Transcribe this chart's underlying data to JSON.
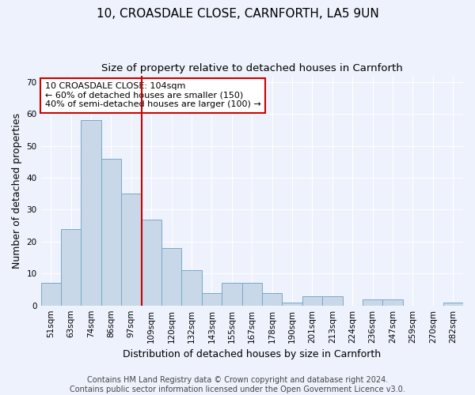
{
  "title": "10, CROASDALE CLOSE, CARNFORTH, LA5 9UN",
  "subtitle": "Size of property relative to detached houses in Carnforth",
  "xlabel": "Distribution of detached houses by size in Carnforth",
  "ylabel": "Number of detached properties",
  "bar_labels": [
    "51sqm",
    "63sqm",
    "74sqm",
    "86sqm",
    "97sqm",
    "109sqm",
    "120sqm",
    "132sqm",
    "143sqm",
    "155sqm",
    "167sqm",
    "178sqm",
    "190sqm",
    "201sqm",
    "213sqm",
    "224sqm",
    "236sqm",
    "247sqm",
    "259sqm",
    "270sqm",
    "282sqm"
  ],
  "bar_values": [
    7,
    24,
    58,
    46,
    35,
    27,
    18,
    11,
    4,
    7,
    7,
    4,
    1,
    3,
    3,
    0,
    2,
    2,
    0,
    0,
    1
  ],
  "bar_color": "#c8d8e8",
  "bar_edge_color": "#7aa8c8",
  "ylim": [
    0,
    72
  ],
  "yticks": [
    0,
    10,
    20,
    30,
    40,
    50,
    60,
    70
  ],
  "vline_x": 4.5,
  "vline_color": "#cc0000",
  "annotation_line1": "10 CROASDALE CLOSE: 104sqm",
  "annotation_line2": "← 60% of detached houses are smaller (150)",
  "annotation_line3": "40% of semi-detached houses are larger (100) →",
  "annotation_box_color": "#ffffff",
  "annotation_box_edge": "#cc0000",
  "footer_line1": "Contains HM Land Registry data © Crown copyright and database right 2024.",
  "footer_line2": "Contains public sector information licensed under the Open Government Licence v3.0.",
  "background_color": "#eef2fc",
  "grid_color": "#ffffff",
  "title_fontsize": 11,
  "subtitle_fontsize": 9.5,
  "axis_label_fontsize": 9,
  "tick_fontsize": 7.5,
  "annotation_fontsize": 8,
  "footer_fontsize": 7
}
